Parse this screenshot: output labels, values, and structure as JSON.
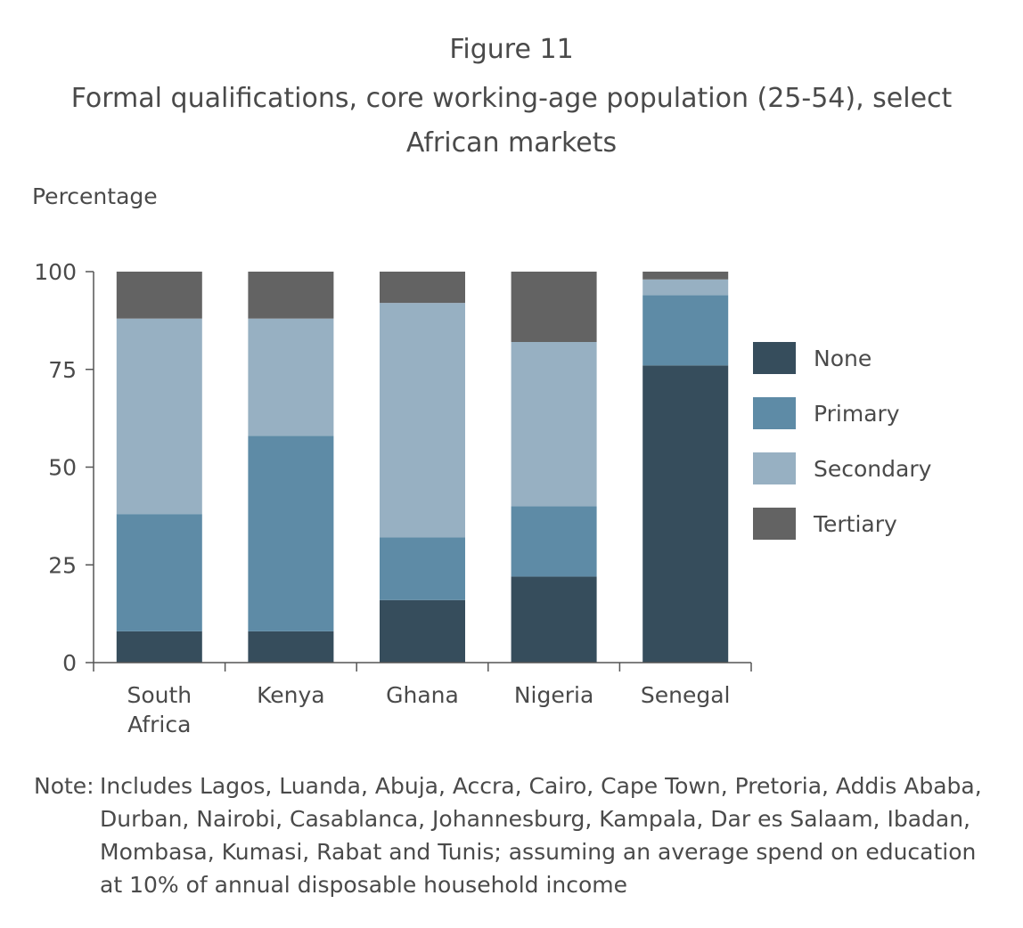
{
  "figure_label": "Figure 11",
  "title_lines": [
    "Formal qualifications, core working-age population (25-54), select",
    "African markets"
  ],
  "note": {
    "label": "Note:",
    "text": "Includes Lagos, Luanda, Abuja, Accra, Cairo, Cape Town, Pretoria, Addis Ababa, Durban, Nairobi, Casablanca, Johannesburg, Kampala, Dar es Salaam, Ibadan, Mombasa, Kumasi, Rabat and Tunis; assuming an average spend on education at 10% of annual disposable household income"
  },
  "chart_data": {
    "type": "bar",
    "stacked": true,
    "ylabel": "Percentage",
    "ylim": [
      0,
      100
    ],
    "yticks": [
      0,
      25,
      50,
      75,
      100
    ],
    "categories": [
      [
        "South",
        "Africa"
      ],
      [
        "Kenya"
      ],
      [
        "Ghana"
      ],
      [
        "Nigeria"
      ],
      [
        "Senegal"
      ]
    ],
    "series": [
      {
        "name": "None",
        "color": "#364d5c",
        "values": [
          8,
          8,
          16,
          22,
          76
        ]
      },
      {
        "name": "Primary",
        "color": "#5e8ba6",
        "values": [
          30,
          50,
          16,
          18,
          18
        ]
      },
      {
        "name": "Secondary",
        "color": "#97b0c2",
        "values": [
          50,
          30,
          60,
          42,
          4
        ]
      },
      {
        "name": "Tertiary",
        "color": "#636363",
        "values": [
          12,
          12,
          8,
          18,
          2
        ]
      }
    ],
    "legend_position": "right"
  }
}
